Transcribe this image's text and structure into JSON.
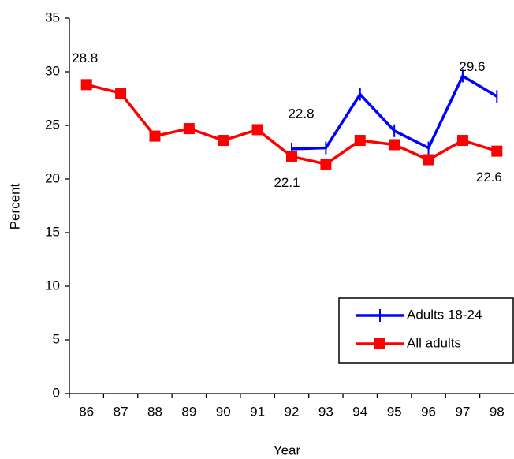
{
  "chart_data": {
    "type": "line",
    "x_label": "Year",
    "y_label": "Percent",
    "categories": [
      "86",
      "87",
      "88",
      "89",
      "90",
      "91",
      "92",
      "93",
      "94",
      "95",
      "96",
      "97",
      "98"
    ],
    "series": [
      {
        "name": "Adults 18-24",
        "color": "#0000ff",
        "marker": "tick",
        "values": [
          null,
          null,
          null,
          null,
          null,
          null,
          22.8,
          22.9,
          27.9,
          24.5,
          22.9,
          29.6,
          27.7
        ]
      },
      {
        "name": "All adults",
        "color": "#ff0000",
        "marker": "square",
        "values": [
          28.8,
          28.0,
          24.0,
          24.7,
          23.6,
          24.6,
          22.1,
          21.4,
          23.6,
          23.2,
          21.8,
          23.6,
          22.6
        ]
      }
    ],
    "ylim": [
      0,
      35
    ],
    "yticks": [
      0,
      5,
      10,
      15,
      20,
      25,
      30,
      35
    ],
    "grid": false,
    "legend": "lower-right"
  }
}
